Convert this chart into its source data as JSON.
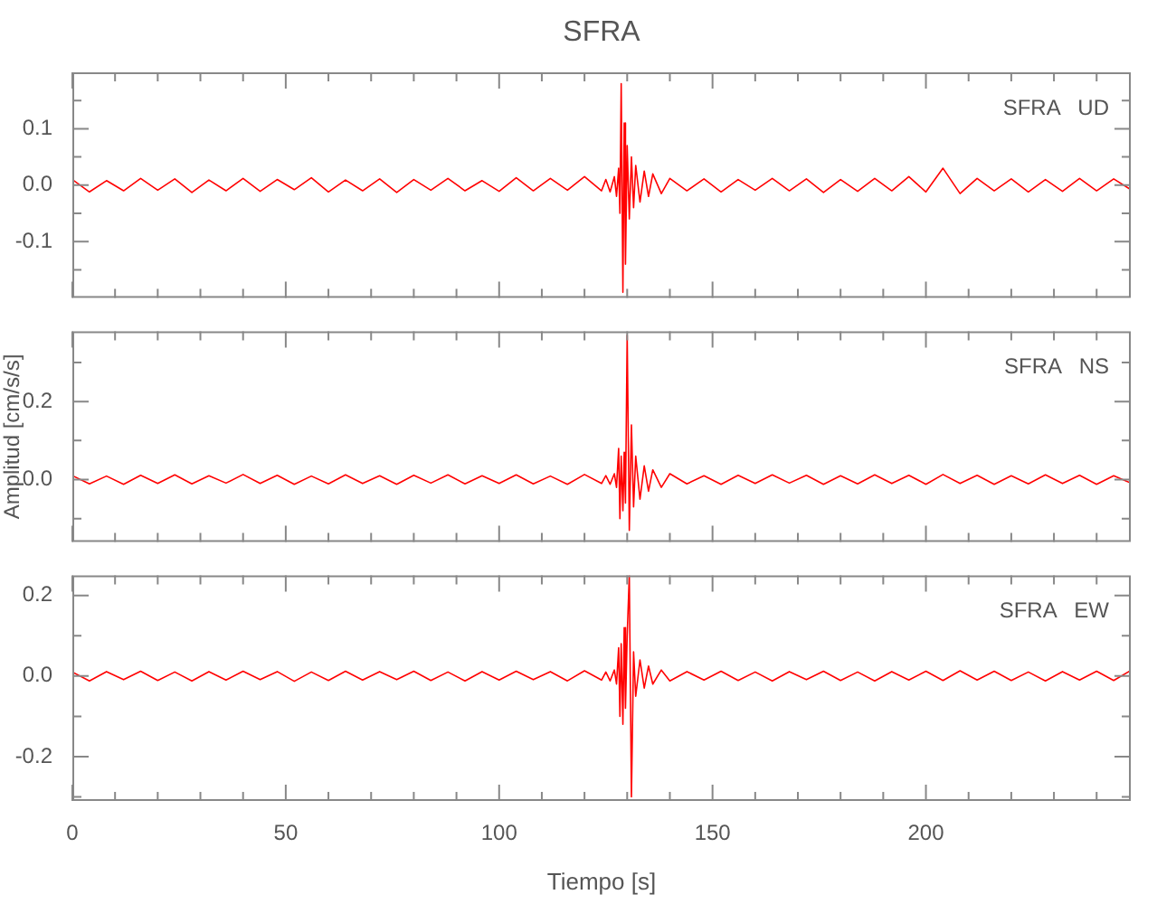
{
  "chart_data": [
    {
      "type": "line",
      "title": "SFRA",
      "annotations": [
        "SFRA   UD"
      ],
      "marker": "none",
      "tick_labels": "y",
      "x": [
        0,
        4,
        8,
        12,
        16,
        20,
        24,
        28,
        32,
        36,
        40,
        44,
        48,
        52,
        56,
        60,
        64,
        68,
        72,
        76,
        80,
        84,
        88,
        92,
        96,
        100,
        104,
        108,
        112,
        116,
        120,
        124,
        125,
        126,
        127,
        127.5,
        128,
        128.3,
        128.6,
        129,
        129.3,
        129.6,
        130,
        130.5,
        131,
        131.5,
        132,
        133,
        134,
        135,
        136,
        138,
        140,
        144,
        148,
        152,
        156,
        160,
        164,
        168,
        172,
        176,
        180,
        184,
        188,
        192,
        196,
        200,
        204,
        208,
        212,
        216,
        220,
        224,
        228,
        232,
        236,
        240,
        244,
        248
      ],
      "series": [
        {
          "color": "#ff0000",
          "values": [
            0.01,
            -0.012,
            0.008,
            -0.01,
            0.012,
            -0.009,
            0.011,
            -0.013,
            0.009,
            -0.01,
            0.012,
            -0.011,
            0.01,
            -0.008,
            0.013,
            -0.012,
            0.009,
            -0.01,
            0.011,
            -0.013,
            0.01,
            -0.009,
            0.012,
            -0.01,
            0.008,
            -0.011,
            0.013,
            -0.01,
            0.012,
            -0.009,
            0.015,
            -0.01,
            0.01,
            -0.012,
            0.015,
            -0.02,
            0.03,
            -0.05,
            0.18,
            -0.19,
            0.11,
            -0.14,
            0.07,
            -0.06,
            0.05,
            -0.04,
            0.035,
            -0.03,
            0.025,
            -0.02,
            0.02,
            -0.015,
            0.012,
            -0.01,
            0.011,
            -0.012,
            0.01,
            -0.009,
            0.012,
            -0.01,
            0.011,
            -0.013,
            0.01,
            -0.011,
            0.012,
            -0.01,
            0.015,
            -0.012,
            0.03,
            -0.015,
            0.012,
            -0.01,
            0.011,
            -0.012,
            0.01,
            -0.011,
            0.012,
            -0.01,
            0.011,
            -0.008
          ]
        }
      ],
      "xlim": [
        0,
        248
      ],
      "xticks": [
        0,
        {
          "value": 10,
          "label": null
        },
        {
          "value": 20,
          "label": null
        },
        {
          "value": 30,
          "label": null
        },
        {
          "value": 40,
          "label": null
        },
        50,
        {
          "value": 60,
          "label": null
        },
        {
          "value": 70,
          "label": null
        },
        {
          "value": 80,
          "label": null
        },
        {
          "value": 90,
          "label": null
        },
        100,
        {
          "value": 110,
          "label": null
        },
        {
          "value": 120,
          "label": null
        },
        {
          "value": 130,
          "label": null
        },
        {
          "value": 140,
          "label": null
        },
        150,
        {
          "value": 160,
          "label": null
        },
        {
          "value": 170,
          "label": null
        },
        {
          "value": 180,
          "label": null
        },
        {
          "value": 190,
          "label": null
        },
        200,
        {
          "value": 210,
          "label": null
        },
        {
          "value": 220,
          "label": null
        },
        {
          "value": 230,
          "label": null
        },
        {
          "value": 240,
          "label": null
        }
      ],
      "ylim": [
        -0.2,
        0.2
      ],
      "yticks": [
        {
          "value": -0.15,
          "label": null
        },
        -0.1,
        {
          "value": -0.05,
          "label": null
        },
        {
          "value": 0,
          "label": "0.0"
        },
        {
          "value": 0.05,
          "label": null
        },
        0.1,
        {
          "value": 0.15,
          "label": null
        }
      ]
    },
    {
      "type": "line",
      "ylabel": "Amplitud [cm/s/s]",
      "annotations": [
        "SFRA   NS"
      ],
      "marker": "none",
      "tick_labels": "y",
      "x": [
        0,
        4,
        8,
        12,
        16,
        20,
        24,
        28,
        32,
        36,
        40,
        44,
        48,
        52,
        56,
        60,
        64,
        68,
        72,
        76,
        80,
        84,
        88,
        92,
        96,
        100,
        104,
        108,
        112,
        116,
        120,
        124,
        125,
        126,
        127,
        127.5,
        128,
        128.3,
        128.6,
        129,
        129.3,
        129.6,
        130,
        130.5,
        131,
        131.5,
        132,
        133,
        134,
        135,
        136,
        138,
        140,
        144,
        148,
        152,
        156,
        160,
        164,
        168,
        172,
        176,
        180,
        184,
        188,
        192,
        196,
        200,
        204,
        208,
        212,
        216,
        220,
        224,
        228,
        232,
        236,
        240,
        244,
        248
      ],
      "series": [
        {
          "color": "#ff0000",
          "values": [
            0.01,
            -0.011,
            0.009,
            -0.012,
            0.011,
            -0.01,
            0.012,
            -0.011,
            0.01,
            -0.009,
            0.013,
            -0.01,
            0.011,
            -0.012,
            0.009,
            -0.011,
            0.012,
            -0.01,
            0.01,
            -0.012,
            0.011,
            -0.009,
            0.012,
            -0.011,
            0.01,
            -0.01,
            0.012,
            -0.011,
            0.009,
            -0.012,
            0.013,
            -0.01,
            0.01,
            -0.012,
            0.015,
            -0.02,
            0.08,
            -0.1,
            0.06,
            -0.08,
            0.07,
            -0.06,
            0.37,
            -0.13,
            0.14,
            -0.07,
            0.06,
            -0.05,
            0.035,
            -0.03,
            0.025,
            -0.02,
            0.015,
            -0.011,
            0.01,
            -0.012,
            0.011,
            -0.01,
            0.012,
            -0.009,
            0.011,
            -0.012,
            0.01,
            -0.011,
            0.012,
            -0.01,
            0.011,
            -0.012,
            0.013,
            -0.01,
            0.011,
            -0.012,
            0.01,
            -0.011,
            0.012,
            -0.01,
            0.011,
            -0.012,
            0.01,
            -0.009
          ]
        }
      ],
      "xlim": [
        0,
        248
      ],
      "xticks": [
        0,
        {
          "value": 10,
          "label": null
        },
        {
          "value": 20,
          "label": null
        },
        {
          "value": 30,
          "label": null
        },
        {
          "value": 40,
          "label": null
        },
        50,
        {
          "value": 60,
          "label": null
        },
        {
          "value": 70,
          "label": null
        },
        {
          "value": 80,
          "label": null
        },
        {
          "value": 90,
          "label": null
        },
        100,
        {
          "value": 110,
          "label": null
        },
        {
          "value": 120,
          "label": null
        },
        {
          "value": 130,
          "label": null
        },
        {
          "value": 140,
          "label": null
        },
        150,
        {
          "value": 160,
          "label": null
        },
        {
          "value": 170,
          "label": null
        },
        {
          "value": 180,
          "label": null
        },
        {
          "value": 190,
          "label": null
        },
        200,
        {
          "value": 210,
          "label": null
        },
        {
          "value": 220,
          "label": null
        },
        {
          "value": 230,
          "label": null
        },
        {
          "value": 240,
          "label": null
        }
      ],
      "ylim": [
        -0.16,
        0.38
      ],
      "yticks": [
        {
          "value": -0.1,
          "label": null
        },
        {
          "value": 0,
          "label": "0.0"
        },
        {
          "value": 0.1,
          "label": null
        },
        0.2,
        {
          "value": 0.3,
          "label": null
        }
      ]
    },
    {
      "type": "line",
      "xlabel": "Tiempo [s]",
      "annotations": [
        "SFRA   EW"
      ],
      "marker": "none",
      "x": [
        0,
        4,
        8,
        12,
        16,
        20,
        24,
        28,
        32,
        36,
        40,
        44,
        48,
        52,
        56,
        60,
        64,
        68,
        72,
        76,
        80,
        84,
        88,
        92,
        96,
        100,
        104,
        108,
        112,
        116,
        120,
        124,
        125,
        126,
        127,
        127.5,
        128,
        128.3,
        128.6,
        129,
        129.3,
        129.6,
        130,
        130.5,
        131,
        131.5,
        132,
        133,
        134,
        135,
        136,
        138,
        140,
        144,
        148,
        152,
        156,
        160,
        164,
        168,
        172,
        176,
        180,
        184,
        188,
        192,
        196,
        200,
        204,
        208,
        212,
        216,
        220,
        224,
        228,
        232,
        236,
        240,
        244,
        248
      ],
      "series": [
        {
          "color": "#ff0000",
          "values": [
            0.01,
            -0.012,
            0.011,
            -0.009,
            0.012,
            -0.011,
            0.01,
            -0.012,
            0.011,
            -0.01,
            0.012,
            -0.009,
            0.011,
            -0.013,
            0.01,
            -0.011,
            0.012,
            -0.01,
            0.011,
            -0.009,
            0.012,
            -0.011,
            0.01,
            -0.012,
            0.011,
            -0.01,
            0.012,
            -0.009,
            0.011,
            -0.012,
            0.013,
            -0.01,
            0.01,
            -0.012,
            0.015,
            -0.02,
            0.07,
            -0.1,
            0.08,
            -0.12,
            0.12,
            -0.08,
            0.1,
            0.25,
            -0.3,
            0.06,
            -0.05,
            0.04,
            -0.03,
            0.025,
            -0.02,
            0.015,
            -0.012,
            0.011,
            -0.01,
            0.012,
            -0.011,
            0.01,
            -0.012,
            0.011,
            -0.009,
            0.012,
            -0.011,
            0.01,
            -0.012,
            0.011,
            -0.01,
            0.012,
            -0.011,
            0.013,
            -0.01,
            0.012,
            -0.011,
            0.01,
            -0.012,
            0.011,
            -0.01,
            0.012,
            -0.011,
            0.014
          ]
        }
      ],
      "xlim": [
        0,
        248
      ],
      "xticks": [
        0,
        {
          "value": 10,
          "label": null
        },
        {
          "value": 20,
          "label": null
        },
        {
          "value": 30,
          "label": null
        },
        {
          "value": 40,
          "label": null
        },
        50,
        {
          "value": 60,
          "label": null
        },
        {
          "value": 70,
          "label": null
        },
        {
          "value": 80,
          "label": null
        },
        {
          "value": 90,
          "label": null
        },
        100,
        {
          "value": 110,
          "label": null
        },
        {
          "value": 120,
          "label": null
        },
        {
          "value": 130,
          "label": null
        },
        {
          "value": 140,
          "label": null
        },
        150,
        {
          "value": 160,
          "label": null
        },
        {
          "value": 170,
          "label": null
        },
        {
          "value": 180,
          "label": null
        },
        {
          "value": 190,
          "label": null
        },
        200,
        {
          "value": 210,
          "label": null
        },
        {
          "value": 220,
          "label": null
        },
        {
          "value": 230,
          "label": null
        },
        {
          "value": 240,
          "label": null
        }
      ],
      "ylim": [
        -0.31,
        0.25
      ],
      "yticks": [
        {
          "value": -0.3,
          "label": null
        },
        -0.2,
        {
          "value": -0.1,
          "label": null
        },
        {
          "value": 0,
          "label": "0.0"
        },
        {
          "value": 0.1,
          "label": null
        },
        0.2
      ]
    }
  ]
}
